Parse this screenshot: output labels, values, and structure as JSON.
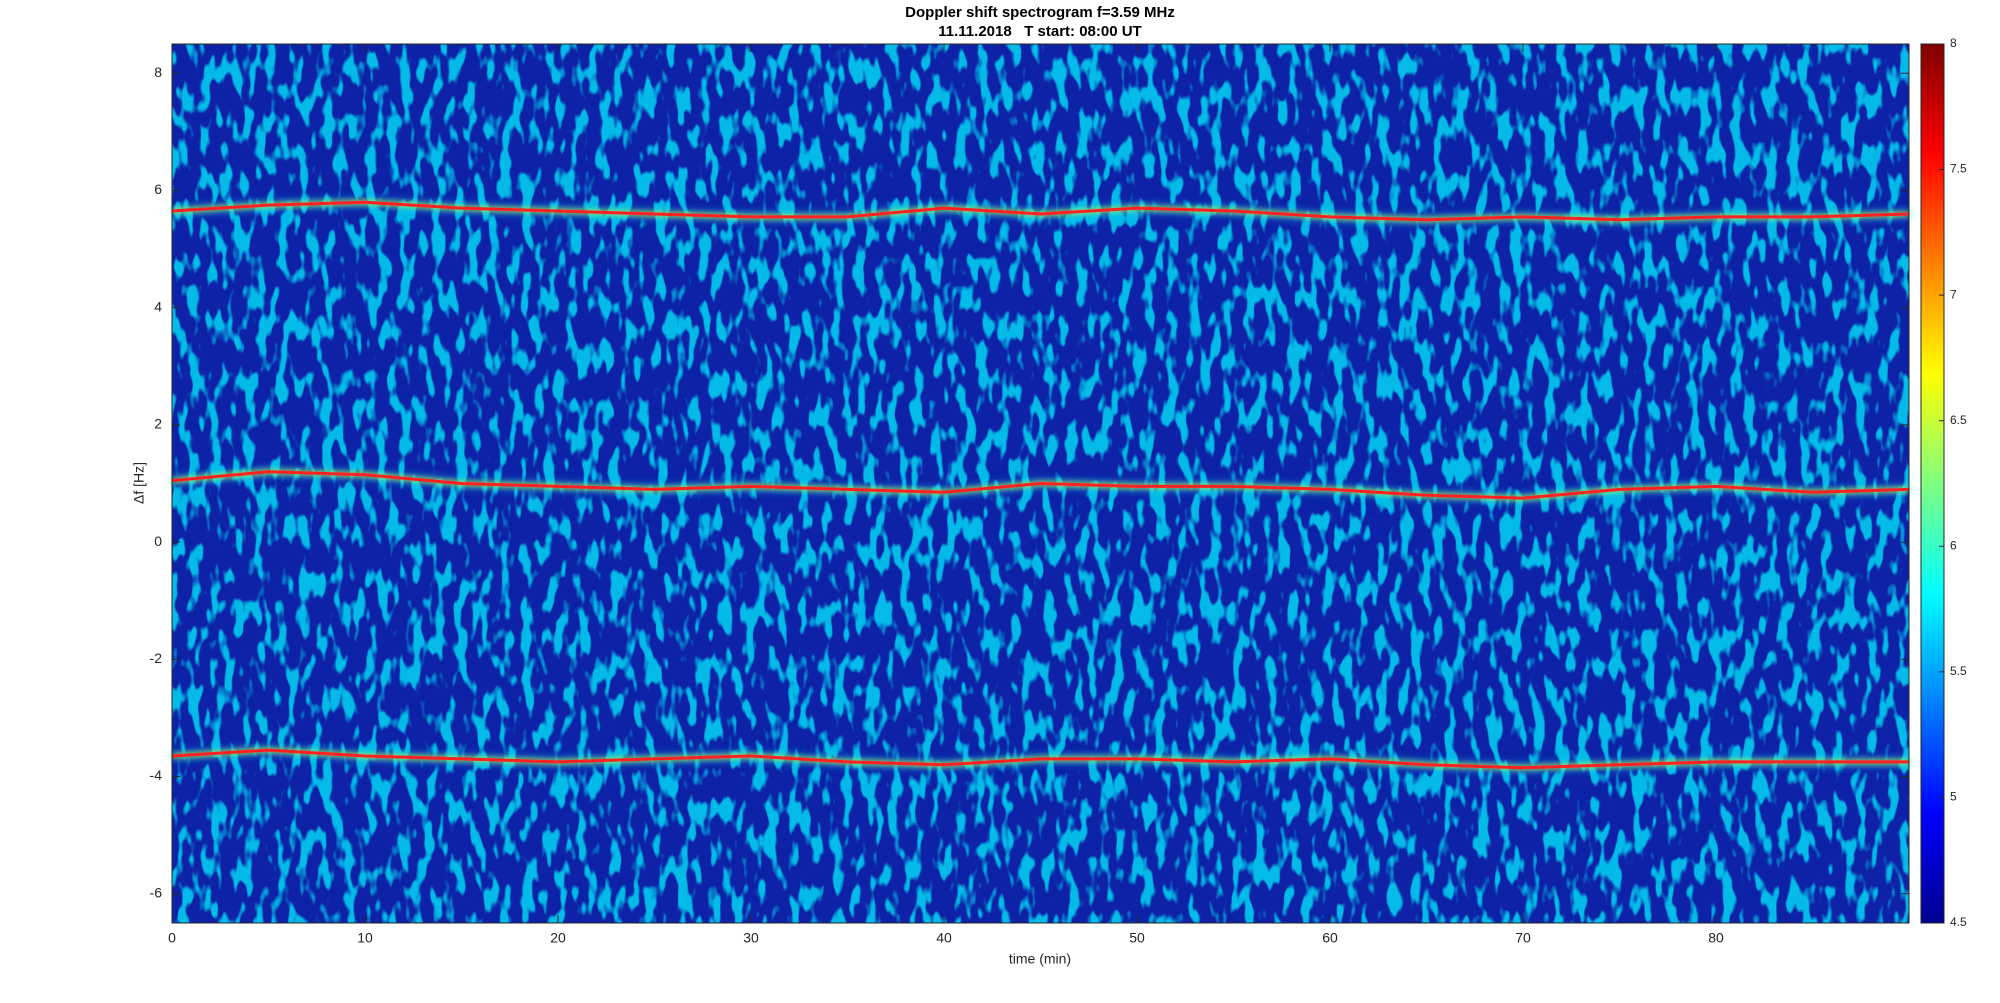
{
  "chart_data": {
    "type": "spectrogram",
    "title": "Doppler shift spectrogram f=3.59 MHz",
    "subtitle": "11.11.2018   T start: 08:00 UT",
    "x_label": "time (min)",
    "y_label": "Δf [Hz]",
    "x": [
      0,
      5,
      10,
      15,
      20,
      25,
      30,
      35,
      40,
      45,
      50,
      55,
      60,
      65,
      70,
      75,
      80,
      85,
      90
    ],
    "series": [
      {
        "color": "#ff2020",
        "values": [
          5.65,
          5.75,
          5.8,
          5.7,
          5.65,
          5.6,
          5.55,
          5.55,
          5.7,
          5.6,
          5.7,
          5.65,
          5.55,
          5.5,
          5.55,
          5.5,
          5.55,
          5.55,
          5.6
        ]
      },
      {
        "color": "#ff2020",
        "values": [
          1.05,
          1.2,
          1.15,
          1.0,
          0.95,
          0.9,
          0.95,
          0.9,
          0.85,
          1.0,
          0.95,
          0.95,
          0.9,
          0.8,
          0.75,
          0.9,
          0.95,
          0.85,
          0.9
        ]
      },
      {
        "color": "#ff2020",
        "values": [
          -3.65,
          -3.55,
          -3.65,
          -3.7,
          -3.75,
          -3.7,
          -3.65,
          -3.75,
          -3.8,
          -3.7,
          -3.7,
          -3.75,
          -3.7,
          -3.8,
          -3.85,
          -3.8,
          -3.75,
          -3.75,
          -3.75
        ]
      }
    ],
    "xlim": [
      0,
      90
    ],
    "xticks": [
      0,
      10,
      20,
      30,
      40,
      50,
      60,
      70,
      80
    ],
    "ylim": [
      -6.5,
      8.5
    ],
    "yticks": [
      -6,
      -4,
      -2,
      0,
      2,
      4,
      6,
      8
    ],
    "colorbar": {
      "colormap": "jet",
      "lim": [
        4.5,
        8
      ],
      "ticks": [
        4.5,
        5,
        5.5,
        6,
        6.5,
        7,
        7.5,
        8
      ]
    }
  }
}
